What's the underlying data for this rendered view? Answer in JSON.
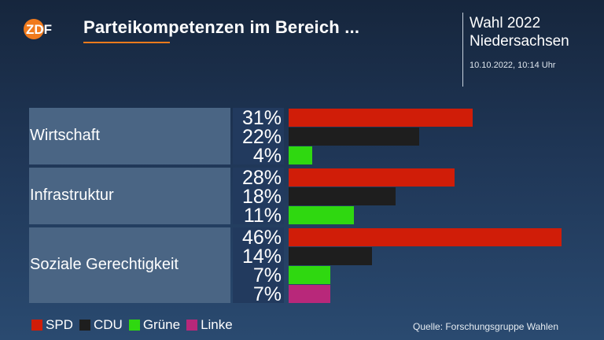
{
  "header": {
    "logo_text": "ZDF",
    "title": "Parteikompetenzen im Bereich ...",
    "election_line1": "Wahl 2022",
    "election_line2": "Niedersachsen",
    "timestamp": "10.10.2022, 10:14 Uhr"
  },
  "colors": {
    "SPD": "#d01d08",
    "CDU": "#1e1e1e",
    "Grüne": "#2fd810",
    "Linke": "#b8287a",
    "accent": "#f07a1c"
  },
  "chart_data": {
    "type": "bar",
    "orientation": "horizontal",
    "unit": "%",
    "groups": [
      {
        "category": "Wirtschaft",
        "bars": [
          {
            "party": "SPD",
            "value": 31,
            "label": "31%"
          },
          {
            "party": "CDU",
            "value": 22,
            "label": "22%"
          },
          {
            "party": "Grüne",
            "value": 4,
            "label": "4%"
          }
        ]
      },
      {
        "category": "Infrastruktur",
        "bars": [
          {
            "party": "SPD",
            "value": 28,
            "label": "28%"
          },
          {
            "party": "CDU",
            "value": 18,
            "label": "18%"
          },
          {
            "party": "Grüne",
            "value": 11,
            "label": "11%"
          }
        ]
      },
      {
        "category": "Soziale Gerechtigkeit",
        "bars": [
          {
            "party": "SPD",
            "value": 46,
            "label": "46%"
          },
          {
            "party": "CDU",
            "value": 14,
            "label": "14%"
          },
          {
            "party": "Grüne",
            "value": 7,
            "label": "7%"
          },
          {
            "party": "Linke",
            "value": 7,
            "label": "7%"
          }
        ]
      }
    ],
    "legend": [
      "SPD",
      "CDU",
      "Grüne",
      "Linke"
    ]
  },
  "footer": {
    "source": "Quelle: Forschungsgruppe Wahlen"
  }
}
